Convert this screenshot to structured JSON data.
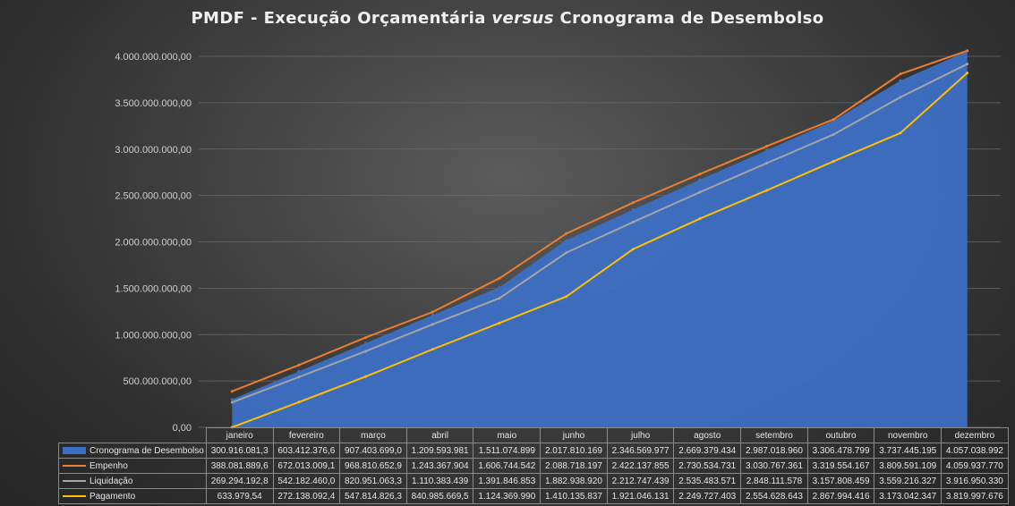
{
  "chart_data": {
    "type": "area",
    "title_parts": [
      "PMDF - Execução Orçamentária ",
      "versus",
      " Cronograma de Desembolso"
    ],
    "ylim": [
      0,
      4000000000
    ],
    "yticks": [
      0,
      500000000,
      1000000000,
      1500000000,
      2000000000,
      2500000000,
      3000000000,
      3500000000,
      4000000000
    ],
    "ytick_labels": [
      "0,00",
      "500.000.000,00",
      "1.000.000.000,00",
      "1.500.000.000,00",
      "2.000.000.000,00",
      "2.500.000.000,00",
      "3.000.000.000,00",
      "3.500.000.000,00",
      "4.000.000.000,00"
    ],
    "categories": [
      "janeiro",
      "fevereiro",
      "março",
      "abril",
      "maio",
      "junho",
      "julho",
      "agosto",
      "setembro",
      "outubro",
      "novembro",
      "dezembro"
    ],
    "grid": true,
    "legend": "data table below chart",
    "series": [
      {
        "name": "Cronograma de Desembolso",
        "kind": "area",
        "color": "#3d6fc4",
        "values": [
          300916081.3,
          603412376.6,
          907403699.0,
          1209593981,
          1511074899,
          2017810169,
          2346569977,
          2669379434,
          2987018960,
          3306478799,
          3737445195,
          4057038992
        ],
        "labels": [
          "300.916.081,3",
          "603.412.376,6",
          "907.403.699,0",
          "1.209.593.981",
          "1.511.074.899",
          "2.017.810.169",
          "2.346.569.977",
          "2.669.379.434",
          "2.987.018.960",
          "3.306.478.799",
          "3.737.445.195",
          "4.057.038.992"
        ]
      },
      {
        "name": "Empenho",
        "kind": "line",
        "color": "#ed7d31",
        "values": [
          388081889.6,
          672013009.1,
          968810652.9,
          1243367904,
          1606744542,
          2088718197,
          2422137855,
          2730534731,
          3030767361,
          3319554167,
          3809591109,
          4059937770
        ],
        "labels": [
          "388.081.889,6",
          "672.013.009,1",
          "968.810.652,9",
          "1.243.367.904",
          "1.606.744.542",
          "2.088.718.197",
          "2.422.137.855",
          "2.730.534.731",
          "3.030.767.361",
          "3.319.554.167",
          "3.809.591.109",
          "4.059.937.770"
        ]
      },
      {
        "name": "Liquidação",
        "kind": "line",
        "color": "#a5a5a5",
        "values": [
          269294192.8,
          542182460.0,
          820951063.3,
          1110383439,
          1391846853,
          1882938920,
          2212747439,
          2535483571,
          2848111578,
          3157808459,
          3559216327,
          3916950330
        ],
        "labels": [
          "269.294.192,8",
          "542.182.460,0",
          "820.951.063,3",
          "1.110.383.439",
          "1.391.846.853",
          "1.882.938.920",
          "2.212.747.439",
          "2.535.483.571",
          "2.848.111.578",
          "3.157.808.459",
          "3.559.216.327",
          "3.916.950.330"
        ]
      },
      {
        "name": "Pagamento",
        "kind": "line",
        "color": "#ffc000",
        "values": [
          633979.54,
          272138092.4,
          547814826.3,
          840985669.5,
          1124369990,
          1410135837,
          1921046131,
          2249727403,
          2554628643,
          2867994416,
          3173042347,
          3819997676
        ],
        "labels": [
          "633.979,54",
          "272.138.092,4",
          "547.814.826,3",
          "840.985.669,5",
          "1.124.369.990",
          "1.410.135.837",
          "1.921.046.131",
          "2.249.727.403",
          "2.554.628.643",
          "2.867.994.416",
          "3.173.042.347",
          "3.819.997.676"
        ]
      }
    ]
  }
}
